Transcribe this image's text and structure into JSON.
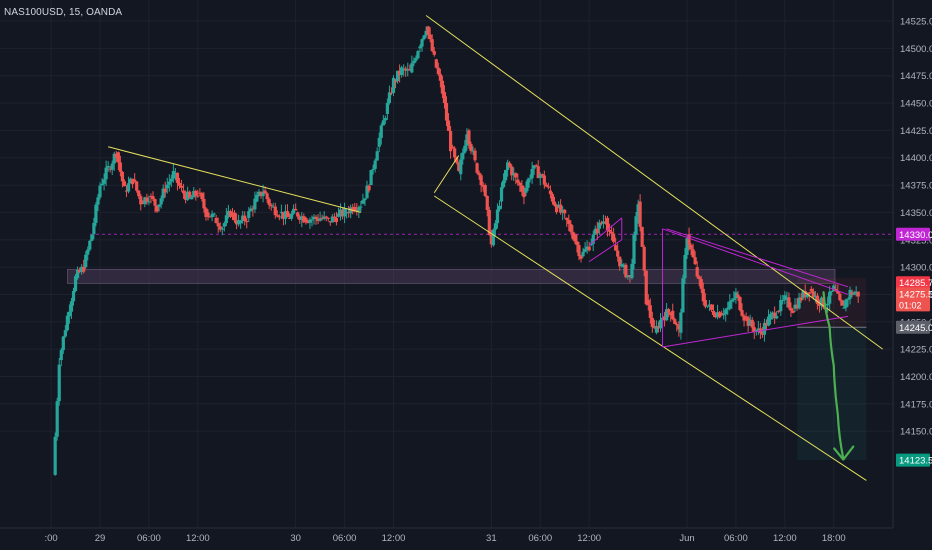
{
  "symbol_title": "NAS100USD, 15, OANDA",
  "colors": {
    "background": "#131722",
    "up": "#26a69a",
    "down": "#ef5350",
    "trendline": "#e5e05a",
    "pattern": "#c026d3",
    "zone": "#4a3b55",
    "arrow": "#4caf50",
    "axis_text": "#b2b5be",
    "grid": "#1e222d"
  },
  "chart_data": {
    "type": "candlestick",
    "title": "NAS100USD, 15, OANDA",
    "y_range": [
      14105,
      14540
    ],
    "y_axis": {
      "position": "right",
      "ticks": [
        14150,
        14175,
        14200,
        14225,
        14250,
        14275,
        14300,
        14325,
        14350,
        14375,
        14400,
        14425,
        14450,
        14475,
        14500,
        14525
      ],
      "tick_labels": [
        "14150.0",
        "14175.0",
        "14200.0",
        "14225.0",
        "14250.0",
        "14275.0",
        "14300.0",
        "14325.0",
        "14350.0",
        "14375.0",
        "14400.0",
        "14425.0",
        "14450.0",
        "14475.0",
        "14500.0",
        "14525.0"
      ]
    },
    "x_axis": {
      "range": [
        "May 28 16:00",
        "Jun 1 22:00"
      ],
      "ticks": [
        {
          "t": "May 28 18:00",
          "label": ":00"
        },
        {
          "t": "May 29 00:00",
          "label": "29"
        },
        {
          "t": "May 29 06:00",
          "label": "06:00"
        },
        {
          "t": "May 29 12:00",
          "label": "12:00"
        },
        {
          "t": "May 30 00:00",
          "label": "30"
        },
        {
          "t": "May 30 06:00",
          "label": "06:00"
        },
        {
          "t": "May 30 12:00",
          "label": "12:00"
        },
        {
          "t": "May 31 00:00",
          "label": "31"
        },
        {
          "t": "May 31 06:00",
          "label": "06:00"
        },
        {
          "t": "May 31 12:00",
          "label": "12:00"
        },
        {
          "t": "Jun 1 00:00",
          "label": "Jun"
        },
        {
          "t": "Jun 1 06:00",
          "label": "06:00"
        },
        {
          "t": "Jun 1 12:00",
          "label": "12:00"
        },
        {
          "t": "Jun 1 18:00",
          "label": "18:00"
        }
      ]
    },
    "price_path": [
      [
        "May 28 18:15",
        14110
      ],
      [
        "May 28 19:00",
        14215
      ],
      [
        "May 28 20:00",
        14255
      ],
      [
        "May 28 21:00",
        14290
      ],
      [
        "May 28 22:00",
        14300
      ],
      [
        "May 28 23:00",
        14330
      ],
      [
        "May 29 00:00",
        14375
      ],
      [
        "May 29 01:00",
        14390
      ],
      [
        "May 29 02:00",
        14405
      ],
      [
        "May 29 03:00",
        14370
      ],
      [
        "May 29 04:00",
        14380
      ],
      [
        "May 29 05:00",
        14360
      ],
      [
        "May 29 06:00",
        14365
      ],
      [
        "May 29 07:00",
        14355
      ],
      [
        "May 29 08:00",
        14372
      ],
      [
        "May 29 09:00",
        14385
      ],
      [
        "May 29 10:00",
        14370
      ],
      [
        "May 29 11:00",
        14362
      ],
      [
        "May 29 12:00",
        14368
      ],
      [
        "May 29 13:00",
        14350
      ],
      [
        "May 29 14:00",
        14345
      ],
      [
        "May 29 15:00",
        14337
      ],
      [
        "May 29 16:00",
        14350
      ],
      [
        "May 29 17:00",
        14340
      ],
      [
        "May 29 18:00",
        14345
      ],
      [
        "May 29 19:00",
        14360
      ],
      [
        "May 29 20:00",
        14370
      ],
      [
        "May 29 21:00",
        14355
      ],
      [
        "May 29 22:00",
        14350
      ],
      [
        "May 29 23:00",
        14345
      ],
      [
        "May 30 00:00",
        14350
      ],
      [
        "May 30 01:00",
        14345
      ],
      [
        "May 30 02:00",
        14344
      ],
      [
        "May 30 03:00",
        14345
      ],
      [
        "May 30 04:00",
        14342
      ],
      [
        "May 30 05:00",
        14346
      ],
      [
        "May 30 06:00",
        14350
      ],
      [
        "May 30 07:00",
        14355
      ],
      [
        "May 30 08:00",
        14358
      ],
      [
        "May 30 09:00",
        14375
      ],
      [
        "May 30 10:00",
        14410
      ],
      [
        "May 30 11:00",
        14440
      ],
      [
        "May 30 12:00",
        14470
      ],
      [
        "May 30 13:00",
        14480
      ],
      [
        "May 30 14:00",
        14478
      ],
      [
        "May 30 15:00",
        14500
      ],
      [
        "May 30 16:00",
        14520
      ],
      [
        "May 30 17:00",
        14490
      ],
      [
        "May 30 18:00",
        14460
      ],
      [
        "May 30 19:00",
        14410
      ],
      [
        "May 30 20:00",
        14385
      ],
      [
        "May 30 21:00",
        14425
      ],
      [
        "May 30 22:00",
        14395
      ],
      [
        "May 30 23:00",
        14375
      ],
      [
        "May 31 00:00",
        14320
      ],
      [
        "May 31 01:00",
        14360
      ],
      [
        "May 31 02:00",
        14395
      ],
      [
        "May 31 03:00",
        14380
      ],
      [
        "May 31 04:00",
        14368
      ],
      [
        "May 31 05:00",
        14390
      ],
      [
        "May 31 06:00",
        14385
      ],
      [
        "May 31 07:00",
        14370
      ],
      [
        "May 31 08:00",
        14355
      ],
      [
        "May 31 09:00",
        14345
      ],
      [
        "May 31 10:00",
        14330
      ],
      [
        "May 31 11:00",
        14310
      ],
      [
        "May 31 12:00",
        14320
      ],
      [
        "May 31 13:00",
        14335
      ],
      [
        "May 31 14:00",
        14345
      ],
      [
        "May 31 15:00",
        14320
      ],
      [
        "May 31 16:00",
        14300
      ],
      [
        "May 31 17:00",
        14290
      ],
      [
        "May 31 18:00",
        14360
      ],
      [
        "May 31 19:00",
        14270
      ],
      [
        "May 31 20:00",
        14240
      ],
      [
        "May 31 21:00",
        14255
      ],
      [
        "May 31 22:00",
        14260
      ],
      [
        "May 31 23:00",
        14240
      ],
      [
        "Jun 1 00:00",
        14330
      ],
      [
        "Jun 1 01:00",
        14300
      ],
      [
        "Jun 1 02:00",
        14270
      ],
      [
        "Jun 1 03:00",
        14260
      ],
      [
        "Jun 1 04:00",
        14258
      ],
      [
        "Jun 1 05:00",
        14262
      ],
      [
        "Jun 1 06:00",
        14275
      ],
      [
        "Jun 1 07:00",
        14255
      ],
      [
        "Jun 1 08:00",
        14245
      ],
      [
        "Jun 1 09:00",
        14240
      ],
      [
        "Jun 1 10:00",
        14252
      ],
      [
        "Jun 1 11:00",
        14260
      ],
      [
        "Jun 1 12:00",
        14270
      ],
      [
        "Jun 1 13:00",
        14262
      ],
      [
        "Jun 1 14:00",
        14272
      ],
      [
        "Jun 1 15:00",
        14280
      ],
      [
        "Jun 1 16:00",
        14270
      ],
      [
        "Jun 1 17:00",
        14265
      ],
      [
        "Jun 1 18:00",
        14280
      ],
      [
        "Jun 1 19:00",
        14262
      ],
      [
        "Jun 1 20:00",
        14277
      ],
      [
        "Jun 1 21:00",
        14275.5
      ]
    ],
    "horizontal_levels": [
      {
        "name": "dashed-level",
        "price": 14330.0,
        "label": "14330.0",
        "color": "#c026d3"
      }
    ],
    "price_labels": [
      {
        "price": 14285.7,
        "label": "14285.7",
        "color": "#f23645"
      },
      {
        "price": 14275.5,
        "label": "14275.5",
        "color": "#ef5350",
        "sub_label": "01:02"
      },
      {
        "price": 14245.0,
        "label": "14245.0",
        "color": "#5d606b"
      },
      {
        "price": 14123.5,
        "label": "14123.5",
        "color": "#089981"
      }
    ],
    "zones": [
      {
        "name": "resistance-zone",
        "from": "May 28 20:00",
        "to": "Jun 1 22:00",
        "top": 14298,
        "bottom": 14285
      }
    ],
    "trendlines": [
      {
        "name": "wedge-upper-line",
        "from": [
          "May 29 01:00",
          14410
        ],
        "to": [
          "May 30 08:00",
          14350
        ]
      },
      {
        "name": "channel-upper-line",
        "from": [
          "May 30 16:00",
          14530
        ],
        "to": [
          "Jun 2 00:00",
          14225
        ]
      },
      {
        "name": "channel-lower-line",
        "from": [
          "May 30 17:00",
          14365
        ],
        "to": [
          "Jun 1 22:00",
          14105
        ]
      },
      {
        "name": "channel-diagonal-line",
        "from": [
          "May 30 17:00",
          14368
        ],
        "to": [
          "May 30 20:00",
          14402
        ]
      }
    ],
    "pattern_lines": [
      {
        "name": "flag-top",
        "from": [
          "May 31 12:00",
          14320
        ],
        "to": [
          "May 31 16:00",
          14345
        ]
      },
      {
        "name": "flag-bottom",
        "from": [
          "May 31 12:00",
          14305
        ],
        "to": [
          "May 31 16:00",
          14325
        ]
      },
      {
        "name": "flag-end",
        "from": [
          "May 31 16:00",
          14345
        ],
        "to": [
          "May 31 16:00",
          14325
        ]
      },
      {
        "name": "triangle-top",
        "from": [
          "May 31 21:00",
          14335
        ],
        "to": [
          "Jun 1 19:45",
          14275
        ]
      },
      {
        "name": "triangle-bottom",
        "from": [
          "May 31 21:00",
          14227
        ],
        "to": [
          "Jun 1 19:45",
          14255
        ]
      },
      {
        "name": "triangle-left",
        "from": [
          "May 31 21:00",
          14335
        ],
        "to": [
          "May 31 21:00",
          14227
        ]
      },
      {
        "name": "triangle-mid",
        "from": [
          "May 31 21:30",
          14335
        ],
        "to": [
          "Jun 1 19:45",
          14282
        ]
      }
    ],
    "short_position": {
      "from": "Jun 1 15:00",
      "to": "Jun 1 22:00",
      "entry": 14245.0,
      "target": 14123.5
    },
    "projection_arrow": [
      [
        "Jun 1 16:45",
        14277
      ],
      [
        "Jun 1 17:30",
        14245
      ],
      [
        "Jun 1 18:00",
        14210
      ],
      [
        "Jun 1 18:30",
        14165
      ],
      [
        "Jun 1 19:10",
        14125
      ]
    ]
  }
}
